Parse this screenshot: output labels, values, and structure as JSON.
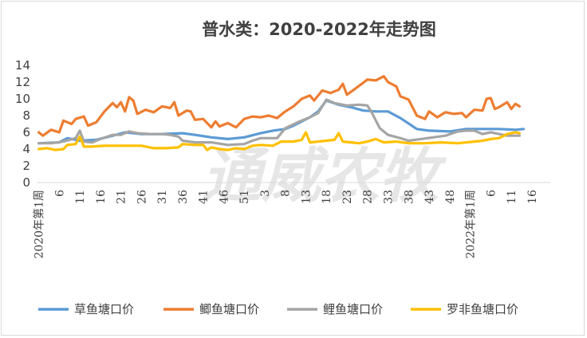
{
  "watermark": "通威农牧",
  "chart_data": {
    "type": "line",
    "title": "普水类：2020-2022年走势图",
    "xlabel": "",
    "ylabel": "",
    "ylim": [
      0,
      14
    ],
    "y_ticks": [
      "0",
      "2",
      "4",
      "6",
      "8",
      "10",
      "12",
      "14"
    ],
    "grid": false,
    "legend_position": "bottom",
    "x_tick_labels": [
      {
        "label": "2020年第1周",
        "index": 0
      },
      {
        "label": "6",
        "index": 5
      },
      {
        "label": "11",
        "index": 10
      },
      {
        "label": "16",
        "index": 15
      },
      {
        "label": "21",
        "index": 20
      },
      {
        "label": "26",
        "index": 25
      },
      {
        "label": "31",
        "index": 30
      },
      {
        "label": "36",
        "index": 35
      },
      {
        "label": "41",
        "index": 40
      },
      {
        "label": "46",
        "index": 45
      },
      {
        "label": "51",
        "index": 50
      },
      {
        "label": "3",
        "index": 55
      },
      {
        "label": "8",
        "index": 60
      },
      {
        "label": "13",
        "index": 65
      },
      {
        "label": "18",
        "index": 70
      },
      {
        "label": "23",
        "index": 75
      },
      {
        "label": "28",
        "index": 80
      },
      {
        "label": "33",
        "index": 85
      },
      {
        "label": "38",
        "index": 90
      },
      {
        "label": "43",
        "index": 95
      },
      {
        "label": "48",
        "index": 100
      },
      {
        "label": "2022年第1周",
        "index": 105
      },
      {
        "label": "6",
        "index": 110
      },
      {
        "label": "11",
        "index": 115
      },
      {
        "label": "16",
        "index": 120
      }
    ],
    "x_count": 125,
    "series": [
      {
        "name": "草鱼塘口价",
        "color": "#5b9bd5",
        "points": [
          [
            0,
            4.7
          ],
          [
            5,
            4.8
          ],
          [
            7,
            5.3
          ],
          [
            10,
            5.0
          ],
          [
            14,
            5.1
          ],
          [
            18,
            5.6
          ],
          [
            21,
            6.0
          ],
          [
            25,
            5.8
          ],
          [
            30,
            5.8
          ],
          [
            35,
            5.9
          ],
          [
            38,
            5.7
          ],
          [
            42,
            5.4
          ],
          [
            46,
            5.2
          ],
          [
            50,
            5.4
          ],
          [
            54,
            5.9
          ],
          [
            57,
            6.2
          ],
          [
            60,
            6.4
          ],
          [
            62,
            6.8
          ],
          [
            66,
            7.8
          ],
          [
            68,
            8.5
          ],
          [
            70,
            9.8
          ],
          [
            73,
            9.3
          ],
          [
            76,
            9.0
          ],
          [
            79,
            8.6
          ],
          [
            82,
            8.5
          ],
          [
            85,
            8.5
          ],
          [
            88,
            7.7
          ],
          [
            92,
            6.4
          ],
          [
            95,
            6.2
          ],
          [
            100,
            6.1
          ],
          [
            104,
            6.4
          ],
          [
            108,
            6.4
          ],
          [
            112,
            6.4
          ],
          [
            116,
            6.3
          ],
          [
            118,
            6.4
          ]
        ]
      },
      {
        "name": "鲫鱼塘口价",
        "color": "#ed7d31",
        "points": [
          [
            0,
            6.0
          ],
          [
            1,
            5.6
          ],
          [
            3,
            6.3
          ],
          [
            5,
            6.0
          ],
          [
            6,
            7.4
          ],
          [
            8,
            7.0
          ],
          [
            9,
            7.6
          ],
          [
            11,
            7.9
          ],
          [
            12,
            6.8
          ],
          [
            14,
            7.2
          ],
          [
            16,
            8.5
          ],
          [
            18,
            9.5
          ],
          [
            19,
            9.0
          ],
          [
            20,
            9.6
          ],
          [
            21,
            8.5
          ],
          [
            22,
            10.2
          ],
          [
            23,
            9.8
          ],
          [
            24,
            8.2
          ],
          [
            26,
            8.7
          ],
          [
            28,
            8.4
          ],
          [
            30,
            9.1
          ],
          [
            32,
            8.9
          ],
          [
            33,
            9.6
          ],
          [
            34,
            8.0
          ],
          [
            36,
            8.6
          ],
          [
            37,
            8.5
          ],
          [
            38,
            7.5
          ],
          [
            40,
            7.6
          ],
          [
            42,
            6.6
          ],
          [
            43,
            7.3
          ],
          [
            44,
            6.7
          ],
          [
            46,
            7.1
          ],
          [
            48,
            6.6
          ],
          [
            50,
            7.6
          ],
          [
            52,
            7.9
          ],
          [
            54,
            7.8
          ],
          [
            56,
            8.0
          ],
          [
            58,
            7.7
          ],
          [
            60,
            8.5
          ],
          [
            62,
            9.1
          ],
          [
            64,
            10.0
          ],
          [
            66,
            10.4
          ],
          [
            67,
            9.8
          ],
          [
            69,
            11.0
          ],
          [
            71,
            10.7
          ],
          [
            73,
            11.1
          ],
          [
            74,
            11.8
          ],
          [
            75,
            10.5
          ],
          [
            77,
            11.2
          ],
          [
            80,
            12.3
          ],
          [
            82,
            12.2
          ],
          [
            84,
            12.7
          ],
          [
            85,
            12.0
          ],
          [
            87,
            11.5
          ],
          [
            88,
            10.3
          ],
          [
            90,
            9.9
          ],
          [
            92,
            8.0
          ],
          [
            94,
            7.6
          ],
          [
            95,
            8.5
          ],
          [
            97,
            7.8
          ],
          [
            99,
            8.4
          ],
          [
            101,
            8.2
          ],
          [
            103,
            8.3
          ],
          [
            104,
            7.8
          ],
          [
            106,
            8.7
          ],
          [
            108,
            8.6
          ],
          [
            109,
            10.0
          ],
          [
            110,
            10.1
          ],
          [
            111,
            8.8
          ],
          [
            112,
            9.0
          ],
          [
            114,
            9.6
          ],
          [
            115,
            8.8
          ],
          [
            116,
            9.4
          ],
          [
            117,
            9.1
          ]
        ]
      },
      {
        "name": "鲤鱼塘口价",
        "color": "#a5a5a5",
        "points": [
          [
            0,
            4.7
          ],
          [
            3,
            4.7
          ],
          [
            6,
            4.9
          ],
          [
            9,
            5.3
          ],
          [
            10,
            6.2
          ],
          [
            11,
            4.9
          ],
          [
            13,
            4.8
          ],
          [
            15,
            5.2
          ],
          [
            18,
            5.7
          ],
          [
            20,
            5.7
          ],
          [
            22,
            6.1
          ],
          [
            24,
            5.9
          ],
          [
            27,
            5.8
          ],
          [
            30,
            5.8
          ],
          [
            32,
            5.7
          ],
          [
            34,
            5.5
          ],
          [
            35,
            5.0
          ],
          [
            38,
            4.8
          ],
          [
            42,
            4.8
          ],
          [
            46,
            4.5
          ],
          [
            50,
            4.6
          ],
          [
            52,
            5.0
          ],
          [
            54,
            5.3
          ],
          [
            58,
            5.3
          ],
          [
            60,
            6.5
          ],
          [
            63,
            7.2
          ],
          [
            66,
            7.8
          ],
          [
            68,
            8.3
          ],
          [
            70,
            9.9
          ],
          [
            72,
            9.5
          ],
          [
            75,
            9.2
          ],
          [
            78,
            9.3
          ],
          [
            80,
            9.2
          ],
          [
            81,
            8.4
          ],
          [
            83,
            6.5
          ],
          [
            85,
            5.7
          ],
          [
            88,
            5.3
          ],
          [
            90,
            5.0
          ],
          [
            93,
            5.2
          ],
          [
            96,
            5.4
          ],
          [
            99,
            5.6
          ],
          [
            102,
            6.1
          ],
          [
            104,
            6.2
          ],
          [
            106,
            6.2
          ],
          [
            108,
            5.8
          ],
          [
            110,
            6.0
          ],
          [
            112,
            5.8
          ],
          [
            114,
            5.6
          ],
          [
            116,
            5.6
          ],
          [
            117,
            5.6
          ]
        ]
      },
      {
        "name": "罗非鱼塘口价",
        "color": "#ffc000",
        "points": [
          [
            0,
            4.0
          ],
          [
            2,
            4.1
          ],
          [
            4,
            3.9
          ],
          [
            6,
            4.0
          ],
          [
            7,
            4.5
          ],
          [
            9,
            4.6
          ],
          [
            10,
            5.5
          ],
          [
            11,
            4.3
          ],
          [
            13,
            4.3
          ],
          [
            16,
            4.4
          ],
          [
            19,
            4.4
          ],
          [
            22,
            4.4
          ],
          [
            25,
            4.4
          ],
          [
            28,
            4.1
          ],
          [
            31,
            4.1
          ],
          [
            34,
            4.2
          ],
          [
            35,
            4.6
          ],
          [
            38,
            4.5
          ],
          [
            40,
            4.5
          ],
          [
            41,
            3.9
          ],
          [
            42,
            4.2
          ],
          [
            44,
            4.0
          ],
          [
            46,
            3.9
          ],
          [
            48,
            4.1
          ],
          [
            50,
            4.0
          ],
          [
            52,
            4.4
          ],
          [
            54,
            4.5
          ],
          [
            57,
            4.4
          ],
          [
            59,
            4.9
          ],
          [
            62,
            4.9
          ],
          [
            64,
            5.1
          ],
          [
            65,
            6.0
          ],
          [
            66,
            4.8
          ],
          [
            68,
            4.9
          ],
          [
            70,
            5.0
          ],
          [
            72,
            5.1
          ],
          [
            73,
            5.9
          ],
          [
            74,
            4.9
          ],
          [
            76,
            4.8
          ],
          [
            78,
            4.7
          ],
          [
            80,
            4.9
          ],
          [
            82,
            5.2
          ],
          [
            84,
            4.8
          ],
          [
            87,
            4.9
          ],
          [
            90,
            4.7
          ],
          [
            94,
            4.7
          ],
          [
            98,
            4.8
          ],
          [
            102,
            4.7
          ],
          [
            106,
            4.9
          ],
          [
            108,
            5.0
          ],
          [
            110,
            5.2
          ],
          [
            112,
            5.3
          ],
          [
            114,
            5.8
          ],
          [
            116,
            6.0
          ],
          [
            117,
            5.9
          ]
        ]
      }
    ]
  }
}
